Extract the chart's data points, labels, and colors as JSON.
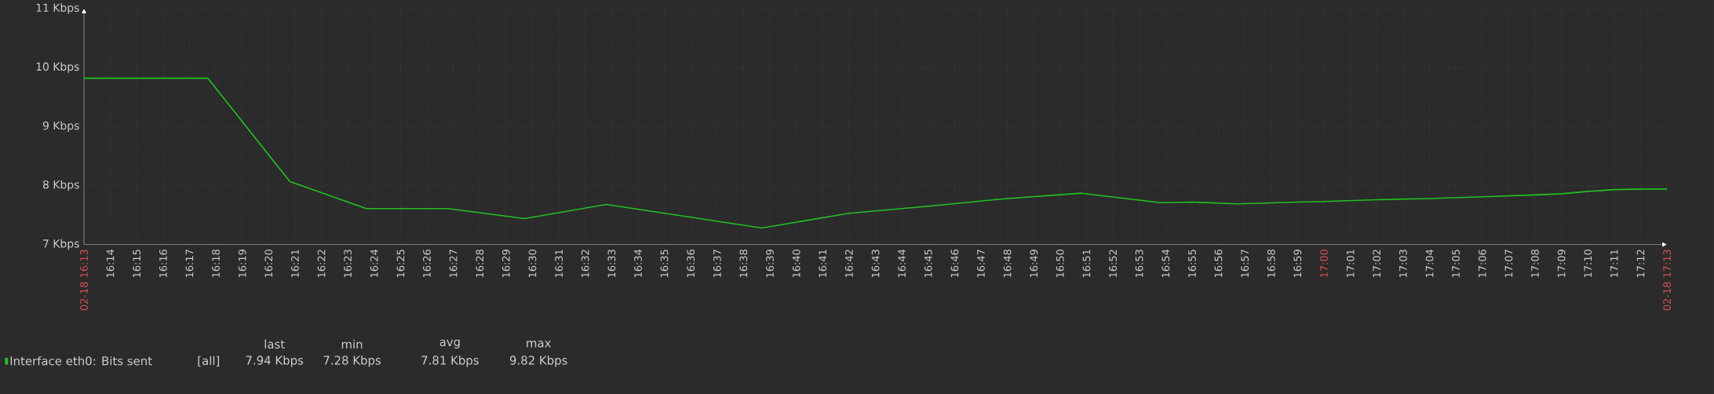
{
  "chart_data": {
    "type": "line",
    "x": [
      16.2167,
      16.295,
      16.3467,
      16.395,
      16.4467,
      16.495,
      16.5467,
      16.645,
      16.7,
      16.75,
      16.8,
      16.8467,
      16.8967,
      16.9167,
      16.945,
      16.9833,
      17,
      17.0333,
      17.0667,
      17.1,
      17.1333,
      17.15,
      17.1667,
      17.1833,
      17.2,
      17.2167
    ],
    "series": [
      {
        "name": "Interface eth0: Bits sent",
        "color": "#22c022",
        "values": [
          9.82,
          9.82,
          8.07,
          7.61,
          7.61,
          7.44,
          7.68,
          7.28,
          7.53,
          7.65,
          7.78,
          7.87,
          7.71,
          7.72,
          7.69,
          7.72,
          7.73,
          7.76,
          7.78,
          7.81,
          7.84,
          7.86,
          7.9,
          7.93,
          7.94,
          7.94
        ]
      }
    ],
    "xlim": [
      16.2167,
      17.2167
    ],
    "xticks": [
      {
        "value": 16.2167,
        "label": "02-18 16:13"
      },
      {
        "value": 16.2333,
        "label": "16:14"
      },
      {
        "value": 16.25,
        "label": "16:15"
      },
      {
        "value": 16.2667,
        "label": "16:16"
      },
      {
        "value": 16.2833,
        "label": "16:17"
      },
      {
        "value": 16.3,
        "label": "16:18"
      },
      {
        "value": 16.3167,
        "label": "16:19"
      },
      {
        "value": 16.3333,
        "label": "16:20"
      },
      {
        "value": 16.35,
        "label": "16:21"
      },
      {
        "value": 16.3667,
        "label": "16:22"
      },
      {
        "value": 16.3833,
        "label": "16:23"
      },
      {
        "value": 16.4,
        "label": "16:24"
      },
      {
        "value": 16.4167,
        "label": "16:25"
      },
      {
        "value": 16.4333,
        "label": "16:26"
      },
      {
        "value": 16.45,
        "label": "16:27"
      },
      {
        "value": 16.4667,
        "label": "16:28"
      },
      {
        "value": 16.4833,
        "label": "16:29"
      },
      {
        "value": 16.5,
        "label": "16:30"
      },
      {
        "value": 16.5167,
        "label": "16:31"
      },
      {
        "value": 16.5333,
        "label": "16:32"
      },
      {
        "value": 16.55,
        "label": "16:33"
      },
      {
        "value": 16.5667,
        "label": "16:34"
      },
      {
        "value": 16.5833,
        "label": "16:35"
      },
      {
        "value": 16.6,
        "label": "16:36"
      },
      {
        "value": 16.6167,
        "label": "16:37"
      },
      {
        "value": 16.6333,
        "label": "16:38"
      },
      {
        "value": 16.65,
        "label": "16:39"
      },
      {
        "value": 16.6667,
        "label": "16:40"
      },
      {
        "value": 16.6833,
        "label": "16:41"
      },
      {
        "value": 16.7,
        "label": "16:42"
      },
      {
        "value": 16.7167,
        "label": "16:43"
      },
      {
        "value": 16.7333,
        "label": "16:44"
      },
      {
        "value": 16.75,
        "label": "16:45"
      },
      {
        "value": 16.7667,
        "label": "16:46"
      },
      {
        "value": 16.7833,
        "label": "16:47"
      },
      {
        "value": 16.8,
        "label": "16:48"
      },
      {
        "value": 16.8167,
        "label": "16:49"
      },
      {
        "value": 16.8333,
        "label": "16:50"
      },
      {
        "value": 16.85,
        "label": "16:51"
      },
      {
        "value": 16.8667,
        "label": "16:52"
      },
      {
        "value": 16.8833,
        "label": "16:53"
      },
      {
        "value": 16.9,
        "label": "16:54"
      },
      {
        "value": 16.9167,
        "label": "16:55"
      },
      {
        "value": 16.9333,
        "label": "16:56"
      },
      {
        "value": 16.95,
        "label": "16:57"
      },
      {
        "value": 16.9667,
        "label": "16:58"
      },
      {
        "value": 16.9833,
        "label": "16:59"
      },
      {
        "value": 17,
        "label": "17:00"
      },
      {
        "value": 17.0167,
        "label": "17:01"
      },
      {
        "value": 17.0333,
        "label": "17:02"
      },
      {
        "value": 17.05,
        "label": "17:03"
      },
      {
        "value": 17.0667,
        "label": "17:04"
      },
      {
        "value": 17.0833,
        "label": "17:05"
      },
      {
        "value": 17.1,
        "label": "17:06"
      },
      {
        "value": 17.1167,
        "label": "17:07"
      },
      {
        "value": 17.1333,
        "label": "17:08"
      },
      {
        "value": 17.15,
        "label": "17:09"
      },
      {
        "value": 17.1667,
        "label": "17:10"
      },
      {
        "value": 17.1833,
        "label": "17:11"
      },
      {
        "value": 17.2,
        "label": "17:12"
      },
      {
        "value": 17.2167,
        "label": "02-18 17:13"
      }
    ],
    "ylim": [
      7,
      11
    ],
    "yticks": [
      {
        "value": 7,
        "label": "7 Kbps"
      },
      {
        "value": 8,
        "label": "8 Kbps"
      },
      {
        "value": 9,
        "label": "9 Kbps"
      },
      {
        "value": 10,
        "label": "10 Kbps"
      },
      {
        "value": 11,
        "label": "11 Kbps"
      }
    ],
    "grid": true,
    "legend": "bottom left",
    "marker": "none",
    "line_style": "solid",
    "annotations": [
      "[all]",
      "last",
      "min",
      "avg",
      "max",
      "7.94 Kbps",
      "7.28 Kbps",
      "7.81 Kbps",
      "9.82 Kbps"
    ]
  }
}
